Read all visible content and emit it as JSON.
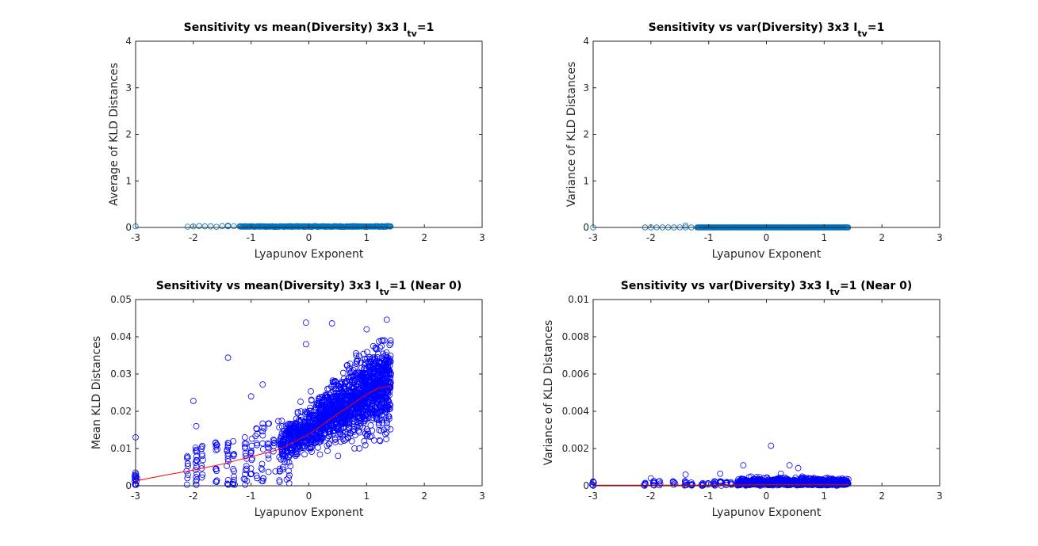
{
  "chart_data": [
    {
      "type": "scatter",
      "title": "Sensitivity vs mean(Diversity) 3x3 I",
      "title_subscript": "tv",
      "title_suffix": "=1",
      "xlabel": "Lyapunov Exponent",
      "ylabel": "Average of KLD Distances",
      "xlim": [
        -3,
        3
      ],
      "ylim": [
        0,
        4
      ],
      "xticks": [
        "-3",
        "-2",
        "-1",
        "0",
        "1",
        "2",
        "3"
      ],
      "yticks": [
        "0",
        "1",
        "2",
        "3",
        "4"
      ],
      "series": [
        {
          "color": "#0072bd",
          "marker": "circle",
          "x_range": [
            -3,
            1.42
          ],
          "y_range": [
            0,
            0.045
          ],
          "description_points": 400
        }
      ],
      "trend_line": null
    },
    {
      "type": "scatter",
      "title": "Sensitivity vs var(Diversity) 3x3 I",
      "title_subscript": "tv",
      "title_suffix": "=1",
      "xlabel": "Lyapunov Exponent",
      "ylabel": "Variance of KLD Distances",
      "xlim": [
        -3,
        3
      ],
      "ylim": [
        0,
        4
      ],
      "xticks": [
        "-3",
        "-2",
        "-1",
        "0",
        "1",
        "2",
        "3"
      ],
      "yticks": [
        "0",
        "1",
        "2",
        "3",
        "4"
      ],
      "series": [
        {
          "color": "#0072bd",
          "marker": "circle",
          "x_range": [
            -3,
            1.42
          ],
          "y_range": [
            0,
            0.002
          ]
        }
      ],
      "trend_line": null
    },
    {
      "type": "scatter",
      "title": "Sensitivity vs mean(Diversity) 3x3 I",
      "title_subscript": "tv",
      "title_suffix": "=1 (Near 0)",
      "xlabel": "Lyapunov Exponent",
      "ylabel": "Mean KLD Distances",
      "xlim": [
        -3,
        3
      ],
      "ylim": [
        0,
        0.05
      ],
      "xticks": [
        "-3",
        "-2",
        "-1",
        "0",
        "1",
        "2",
        "3"
      ],
      "yticks": [
        "0",
        "0.01",
        "0.02",
        "0.03",
        "0.04",
        "0.05"
      ],
      "series": [
        {
          "color": "#0000ff",
          "marker": "circle",
          "outliers": [
            [
              -3.0,
              0.013
            ],
            [
              -2.0,
              0.0228
            ],
            [
              -1.4,
              0.0344
            ],
            [
              -0.05,
              0.0438
            ],
            [
              0.4,
              0.0436
            ],
            [
              1.35,
              0.0446
            ],
            [
              -0.8,
              0.0272
            ],
            [
              -0.05,
              0.038
            ],
            [
              1.0,
              0.042
            ],
            [
              -1.0,
              0.024
            ],
            [
              -1.95,
              0.016
            ]
          ]
        }
      ],
      "trend_line": {
        "color": "#ff0000",
        "x": [
          -3,
          -2.5,
          -2,
          -1.5,
          -1,
          -0.5,
          0,
          0.5,
          1,
          1.2,
          1.42
        ],
        "y": [
          0.0013,
          0.0028,
          0.0042,
          0.0058,
          0.0078,
          0.0098,
          0.0138,
          0.0193,
          0.0245,
          0.0262,
          0.0268
        ]
      }
    },
    {
      "type": "scatter",
      "title": "Sensitivity vs var(Diversity) 3x3 I",
      "title_subscript": "tv",
      "title_suffix": "=1 (Near 0)",
      "xlabel": "Lyapunov Exponent",
      "ylabel": "Variance of KLD Distances",
      "xlim": [
        -3,
        3
      ],
      "ylim": [
        0,
        0.01
      ],
      "xticks": [
        "-3",
        "-2",
        "-1",
        "0",
        "1",
        "2",
        "3"
      ],
      "yticks": [
        "0",
        "0.002",
        "0.004",
        "0.006",
        "0.008",
        "0.01"
      ],
      "series": [
        {
          "color": "#0000ff",
          "marker": "circle",
          "outliers": [
            [
              0.08,
              0.00215
            ],
            [
              -0.4,
              0.0011
            ],
            [
              0.4,
              0.0011
            ],
            [
              0.55,
              0.00095
            ],
            [
              -1.4,
              0.0006
            ],
            [
              -0.8,
              0.00065
            ],
            [
              0.25,
              0.00065
            ],
            [
              -2.0,
              0.0004
            ]
          ]
        }
      ],
      "trend_line": {
        "color": "#ff0000",
        "x": [
          -3,
          -2,
          -1,
          0,
          1,
          1.42
        ],
        "y": [
          3e-05,
          3e-05,
          4e-05,
          5e-05,
          5e-05,
          5e-05
        ]
      }
    }
  ]
}
